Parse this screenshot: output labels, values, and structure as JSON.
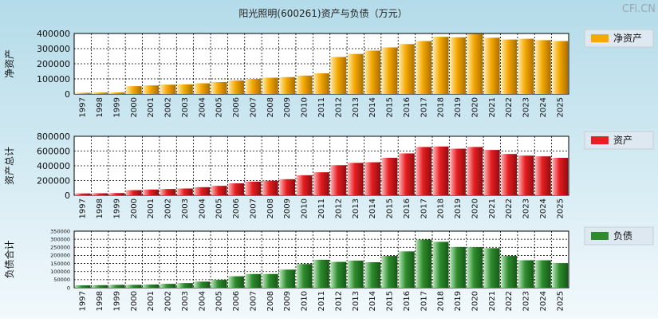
{
  "title": "阳光照明(600261)资产与负债（万元）",
  "watermark": "CFi.CN",
  "colors": {
    "background_top": "#b4dbe9",
    "background_bottom": "#f2f9fc",
    "plot_background": "#ffffff",
    "net_assets": "#f5a800",
    "total_assets": "#e61e22",
    "total_liabilities": "#2e8b2e",
    "legend_panel": "#dde8f0"
  },
  "chart_data": [
    {
      "type": "bar",
      "id": "net_assets",
      "ylabel": "净资产",
      "legend": "净资产",
      "ylim": [
        0,
        400000
      ],
      "yticks": [
        0,
        100000,
        200000,
        300000,
        400000
      ],
      "grid": true,
      "legend_position": "right",
      "categories": [
        "1997",
        "1998",
        "1999",
        "2000",
        "2001",
        "2002",
        "2003",
        "2004",
        "2005",
        "2006",
        "2007",
        "2008",
        "2009",
        "2010",
        "2011",
        "2012",
        "2013",
        "2014",
        "2015",
        "2016",
        "2017",
        "2018",
        "2019",
        "2020",
        "2021",
        "2022",
        "2023",
        "2024",
        "2025"
      ],
      "values": [
        8000,
        10000,
        11000,
        52000,
        57000,
        62000,
        64000,
        71000,
        79000,
        90000,
        100000,
        108000,
        112000,
        122000,
        137000,
        245000,
        265000,
        287000,
        308000,
        330000,
        350000,
        378000,
        375000,
        397000,
        372000,
        360000,
        365000,
        356000,
        350000
      ]
    },
    {
      "type": "bar",
      "id": "total_assets",
      "ylabel": "资产总计",
      "legend": "资产",
      "ylim": [
        0,
        800000
      ],
      "yticks": [
        0,
        200000,
        400000,
        600000,
        800000
      ],
      "grid": true,
      "legend_position": "right",
      "categories": [
        "1997",
        "1998",
        "1999",
        "2000",
        "2001",
        "2002",
        "2003",
        "2004",
        "2005",
        "2006",
        "2007",
        "2008",
        "2009",
        "2010",
        "2011",
        "2012",
        "2013",
        "2014",
        "2015",
        "2016",
        "2017",
        "2018",
        "2019",
        "2020",
        "2021",
        "2022",
        "2023",
        "2024",
        "2025"
      ],
      "values": [
        25000,
        27000,
        30000,
        70000,
        78000,
        85000,
        92000,
        110000,
        128000,
        162000,
        185000,
        198000,
        218000,
        272000,
        312000,
        408000,
        440000,
        448000,
        508000,
        568000,
        655000,
        662000,
        632000,
        655000,
        615000,
        560000,
        538000,
        528000,
        508000
      ]
    },
    {
      "type": "bar",
      "id": "total_liabilities",
      "ylabel": "负债合计",
      "legend": "负债",
      "ylim": [
        0,
        350000
      ],
      "yticks": [
        0,
        50000,
        100000,
        150000,
        200000,
        250000,
        300000,
        350000
      ],
      "grid": true,
      "legend_position": "right",
      "categories": [
        "1997",
        "1998",
        "1999",
        "2000",
        "2001",
        "2002",
        "2003",
        "2004",
        "2005",
        "2006",
        "2007",
        "2008",
        "2009",
        "2010",
        "2011",
        "2012",
        "2013",
        "2014",
        "2015",
        "2016",
        "2017",
        "2018",
        "2019",
        "2020",
        "2021",
        "2022",
        "2023",
        "2024",
        "2025"
      ],
      "values": [
        15000,
        16000,
        18000,
        18000,
        20000,
        24000,
        29000,
        38000,
        49000,
        71000,
        85000,
        85000,
        112000,
        147000,
        173000,
        160000,
        168000,
        158000,
        197000,
        225000,
        298000,
        284000,
        252000,
        251000,
        245000,
        197000,
        170000,
        170000,
        152000
      ]
    }
  ]
}
